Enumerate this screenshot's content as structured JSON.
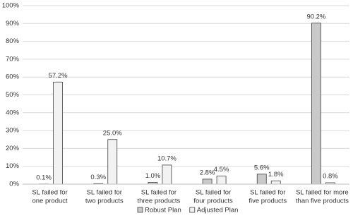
{
  "chart_data": {
    "type": "bar",
    "categories": [
      [
        "SL failed for",
        "one product"
      ],
      [
        "SL failed for",
        "two products"
      ],
      [
        "SL failed for",
        "three products"
      ],
      [
        "SL failed for",
        "four products"
      ],
      [
        "SL failed for",
        "five products"
      ],
      [
        "SL failed for more",
        "than five products"
      ]
    ],
    "series": [
      {
        "name": "Robust Plan",
        "color": "#c9c9c9",
        "values": [
          0.1,
          0.3,
          1.0,
          2.8,
          5.6,
          90.2
        ],
        "value_labels": [
          "0.1%",
          "0.3%",
          "1.0%",
          "2.8%",
          "5.6%",
          "90.2%"
        ]
      },
      {
        "name": "Adjusted Plan",
        "color": "#f2f2f2",
        "values": [
          57.2,
          25.0,
          10.7,
          4.5,
          1.8,
          0.8
        ],
        "value_labels": [
          "57.2%",
          "25.0%",
          "10.7%",
          "4.5%",
          "1.8%",
          "0.8%"
        ]
      }
    ],
    "ylim": [
      0,
      100
    ],
    "yticks": [
      {
        "value": 0,
        "label": "0%"
      },
      {
        "value": 10,
        "label": "10%"
      },
      {
        "value": 20,
        "label": "20%"
      },
      {
        "value": 30,
        "label": "30%"
      },
      {
        "value": 40,
        "label": "40%"
      },
      {
        "value": 50,
        "label": "50%"
      },
      {
        "value": 60,
        "label": "60%"
      },
      {
        "value": 70,
        "label": "70%"
      },
      {
        "value": 80,
        "label": "80%"
      },
      {
        "value": 90,
        "label": "90%"
      },
      {
        "value": 100,
        "label": "100%"
      }
    ],
    "grid": true,
    "legend": "bottom"
  }
}
